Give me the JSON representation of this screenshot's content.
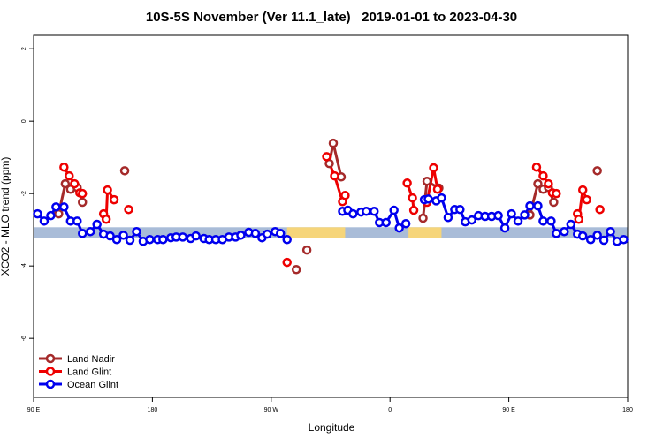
{
  "chart_data": {
    "type": "line",
    "title": "10S-5S November (Ver 11.1_late)   2019-01-01 to 2023-04-30",
    "x_label": "Longitude",
    "y_label": "XCO2 - MLO trend (ppm)",
    "xlim": [
      90,
      540
    ],
    "xticks": [
      {
        "value": 90,
        "label": "90 E"
      },
      {
        "value": 180,
        "label": "180"
      },
      {
        "value": 270,
        "label": "90 W"
      },
      {
        "value": 360,
        "label": "0"
      },
      {
        "value": 450,
        "label": "90 E"
      },
      {
        "value": 540,
        "label": "180"
      }
    ],
    "ylim": [
      -7.63,
      2.37
    ],
    "yticks": [
      -6,
      -4,
      -2,
      0,
      2
    ],
    "legend": "bottom-left",
    "band": {
      "ylim": [
        -3.22,
        -2.93
      ],
      "color": "#a9bcd8",
      "land_color": "#f6d57a",
      "land_spans": [
        [
          282,
          326
        ],
        [
          374,
          399
        ]
      ]
    },
    "series": [
      {
        "name": "Land Nadir",
        "color": "#a52a2a",
        "x": [
          109,
          114,
          118,
          123,
          127,
          null,
          159,
          null,
          289,
          null,
          297,
          null,
          314,
          317,
          323,
          null,
          385,
          388,
          397,
          null,
          466,
          472,
          476,
          480,
          484,
          null,
          517
        ],
        "values": [
          -2.56,
          -1.73,
          -1.88,
          -1.83,
          -2.24,
          null,
          -1.37,
          null,
          -4.1,
          null,
          -3.56,
          null,
          -1.17,
          -0.61,
          -1.54,
          null,
          -2.68,
          -1.66,
          -1.85,
          null,
          -2.59,
          -1.73,
          -1.88,
          -1.83,
          -2.24,
          null,
          -1.37
        ]
      },
      {
        "name": "Land Glint",
        "color": "#ee0000",
        "x": [
          113,
          117,
          121,
          125,
          127,
          null,
          143,
          145,
          146,
          151,
          null,
          162,
          null,
          282,
          null,
          312,
          318,
          324,
          326,
          null,
          373,
          377,
          378,
          null,
          388,
          393,
          396,
          null,
          471,
          476,
          480,
          483,
          486,
          null,
          502,
          503,
          506,
          509,
          null,
          519
        ],
        "values": [
          -1.27,
          -1.51,
          -1.73,
          -1.98,
          -2.0,
          null,
          -2.56,
          -2.71,
          -1.9,
          -2.17,
          null,
          -2.44,
          null,
          -3.9,
          null,
          -0.98,
          -1.51,
          -2.22,
          -2.05,
          null,
          -1.71,
          -2.12,
          -2.46,
          null,
          -2.24,
          -1.29,
          -1.88,
          null,
          -1.27,
          -1.51,
          -1.73,
          -1.98,
          -2.0,
          null,
          -2.56,
          -2.71,
          -1.9,
          -2.17,
          null,
          -2.44
        ]
      },
      {
        "name": "Ocean Glint",
        "color": "#0000ee",
        "x": [
          93,
          98,
          103,
          107,
          113,
          118,
          123,
          127,
          133,
          138,
          143,
          148,
          153,
          158,
          163,
          168,
          173,
          178,
          184,
          188,
          194,
          198,
          203,
          209,
          213,
          219,
          223,
          228,
          233,
          238,
          243,
          247,
          253,
          258,
          263,
          267,
          273,
          277,
          282,
          null,
          324,
          328,
          332,
          338,
          342,
          348,
          352,
          357,
          363,
          367,
          372,
          null,
          386,
          389,
          395,
          399,
          404,
          409,
          413,
          417,
          422,
          427,
          432,
          437,
          442,
          447,
          452,
          457,
          462,
          466,
          472,
          476,
          482,
          486,
          492,
          497,
          502,
          506,
          512,
          517,
          522,
          527,
          532,
          537
        ],
        "values": [
          -2.56,
          -2.76,
          -2.61,
          -2.37,
          -2.37,
          -2.76,
          -2.76,
          -3.1,
          -3.05,
          -2.85,
          -3.12,
          -3.17,
          -3.27,
          -3.15,
          -3.29,
          -3.05,
          -3.32,
          -3.27,
          -3.27,
          -3.27,
          -3.22,
          -3.2,
          -3.2,
          -3.24,
          -3.17,
          -3.24,
          -3.27,
          -3.27,
          -3.27,
          -3.2,
          -3.2,
          -3.15,
          -3.07,
          -3.1,
          -3.22,
          -3.12,
          -3.05,
          -3.1,
          -3.27,
          null,
          -2.49,
          -2.46,
          -2.56,
          -2.51,
          -2.49,
          -2.49,
          -2.8,
          -2.8,
          -2.46,
          -2.95,
          -2.83,
          null,
          -2.17,
          -2.15,
          -2.2,
          -2.12,
          -2.66,
          -2.44,
          -2.44,
          -2.78,
          -2.73,
          -2.61,
          -2.63,
          -2.63,
          -2.61,
          -2.95,
          -2.56,
          -2.76,
          -2.59,
          -2.34,
          -2.34,
          -2.76,
          -2.76,
          -3.1,
          -3.05,
          -2.85,
          -3.12,
          -3.17,
          -3.27,
          -3.15,
          -3.29,
          -3.05,
          -3.32,
          -3.27
        ]
      }
    ]
  }
}
